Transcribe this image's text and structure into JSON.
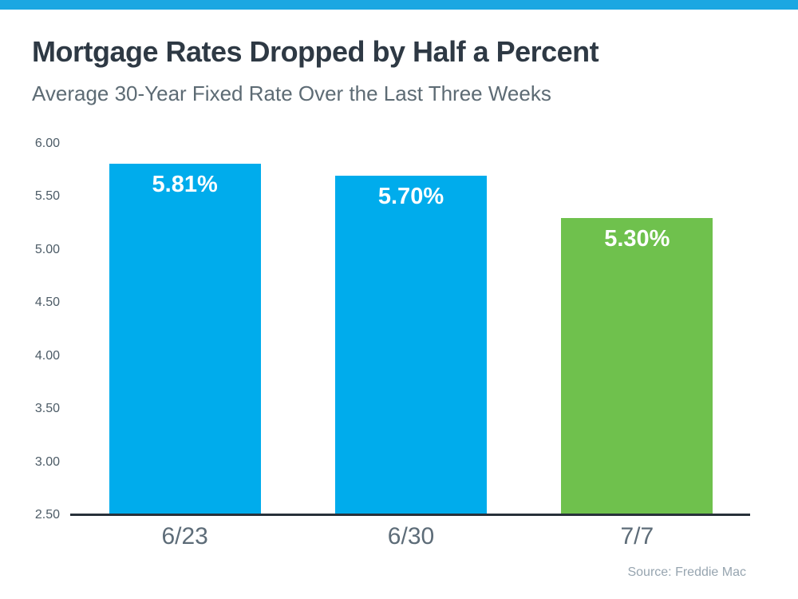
{
  "colors": {
    "top_stripe": "#1BA7E2",
    "bar_blue": "#00ACEC",
    "bar_green": "#6FC14D",
    "bar_value_text": "#FFFFFF",
    "axis_line": "#28313A",
    "title_text": "#2E3944",
    "subtitle_text": "#5D6B74",
    "tick_text": "#4C5B66",
    "xlabel_text": "#5D6C78",
    "source_text": "#97A5B0"
  },
  "chart_data": {
    "type": "bar",
    "title": "Mortgage Rates Dropped by Half a Percent",
    "subtitle": "Average 30-Year Fixed Rate Over the Last Three Weeks",
    "categories": [
      "6/23",
      "6/30",
      "7/7"
    ],
    "values": [
      5.81,
      5.7,
      5.3
    ],
    "value_labels": [
      "5.81%",
      "5.70%",
      "5.30%"
    ],
    "bar_colors": [
      "#00ACEC",
      "#00ACEC",
      "#6FC14D"
    ],
    "xlabel": "",
    "ylabel": "",
    "ylim": [
      2.5,
      6.0
    ],
    "yticks": [
      "6.00",
      "5.50",
      "5.00",
      "4.50",
      "4.00",
      "3.50",
      "3.00",
      "2.50"
    ],
    "grid": false,
    "legend": false,
    "source": "Source: Freddie Mac"
  }
}
